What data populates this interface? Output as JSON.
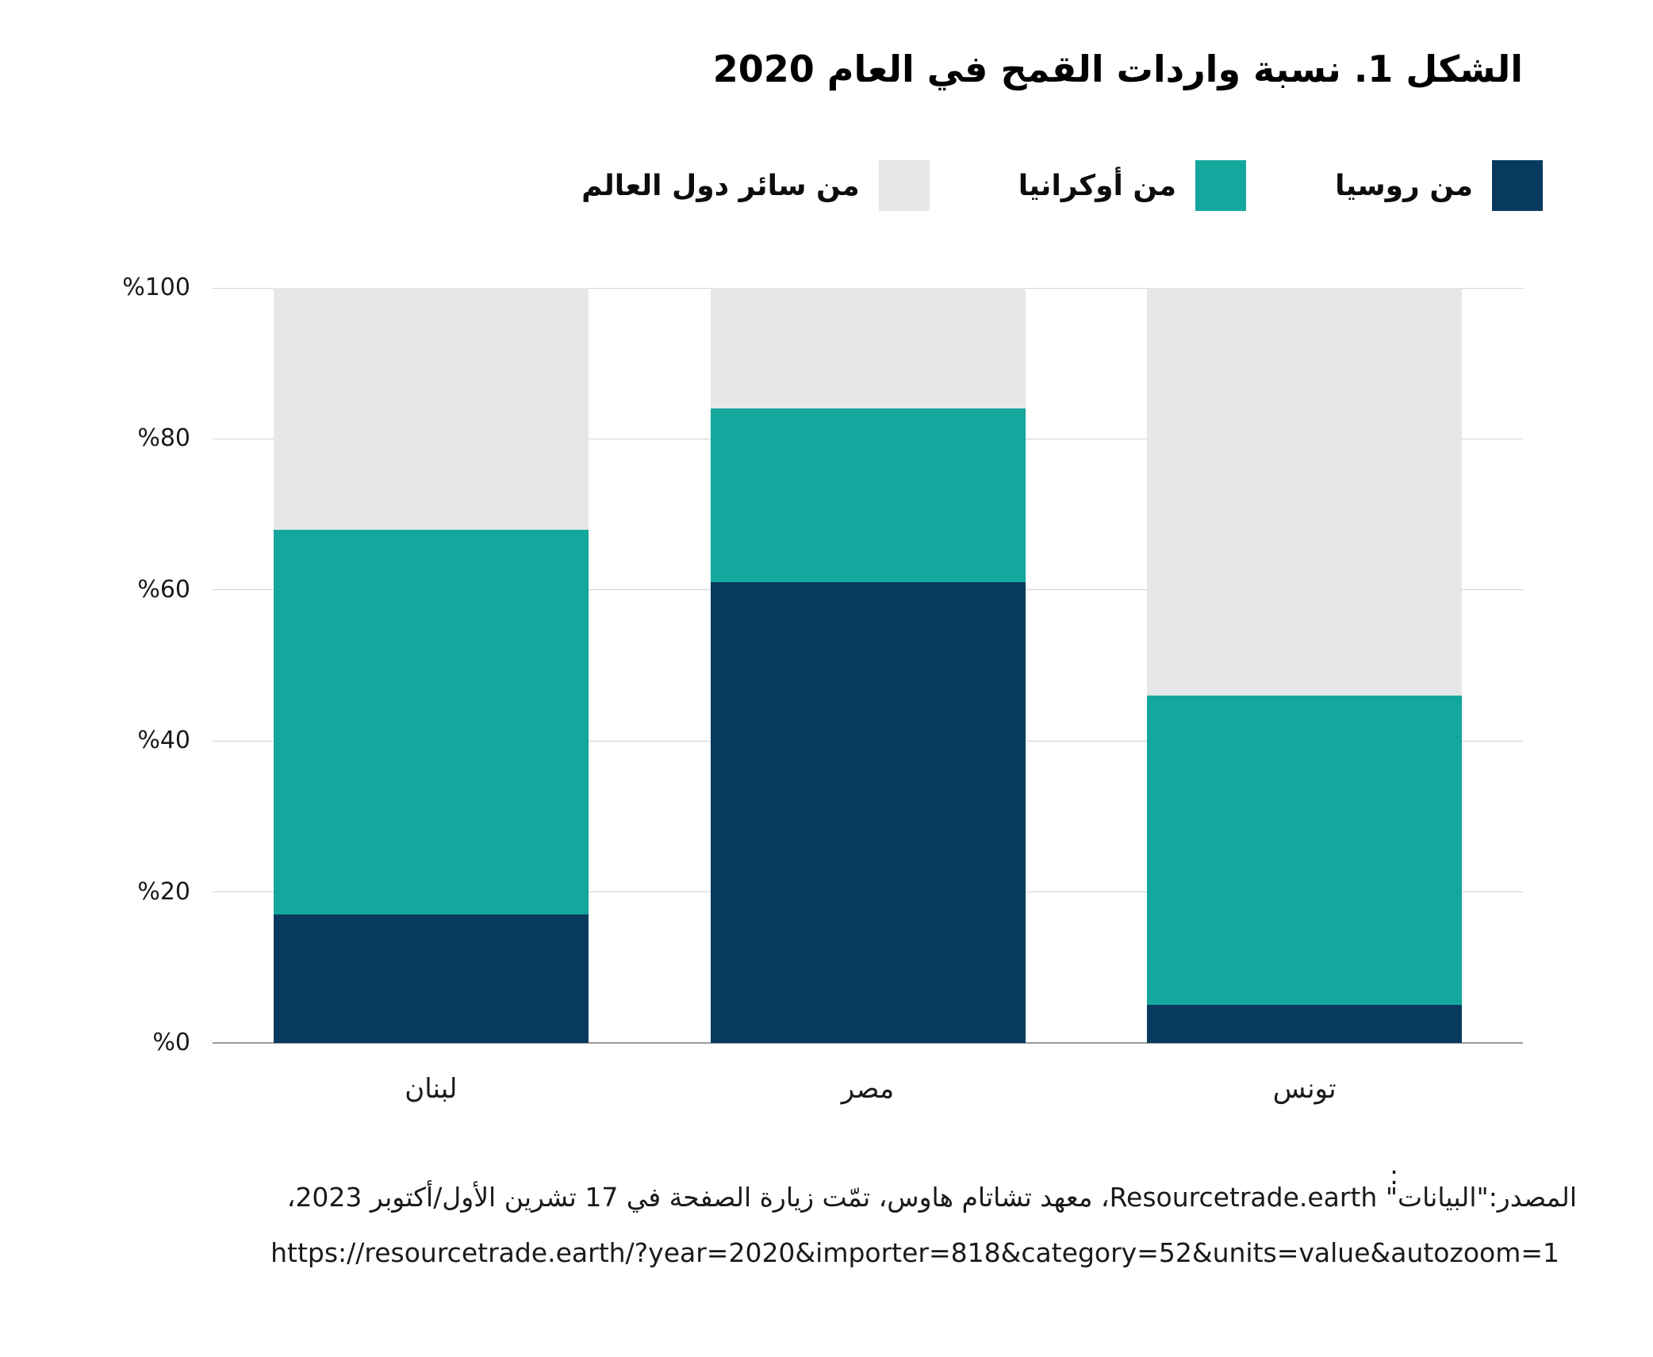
{
  "title": "الشكل 1. نسبة واردات القمح في العام 2020",
  "legend": [
    {
      "label": "من روسيا",
      "color": "#073a5e",
      "name": "russia"
    },
    {
      "label": "من أوكرانيا",
      "color": "#14a79d",
      "name": "ukraine"
    },
    {
      "label": "من سائر دول العالم",
      "color": "#e6e7e8",
      "name": "rest-of-world"
    }
  ],
  "chart_data": {
    "type": "bar",
    "stacked": true,
    "title": "الشكل 1. نسبة واردات القمح في العام 2020",
    "categories": [
      "لبنان",
      "مصر",
      "تونس"
    ],
    "series": [
      {
        "name": "من روسيا",
        "color": "#073a5e",
        "values": [
          17,
          61,
          5
        ]
      },
      {
        "name": "من أوكرانيا",
        "color": "#14a79d",
        "values": [
          51,
          23,
          41
        ]
      },
      {
        "name": "من سائر دول العالم",
        "color": "#e6e7e8",
        "values": [
          32,
          16,
          54
        ]
      }
    ],
    "ylim": [
      0,
      100
    ],
    "y_ticks": [
      {
        "value": 100,
        "label": "%100"
      },
      {
        "value": 80,
        "label": "%80"
      },
      {
        "value": 60,
        "label": "%60"
      },
      {
        "value": 40,
        "label": "%40"
      },
      {
        "value": 20,
        "label": "%20"
      },
      {
        "value": 0,
        "label": "%0"
      }
    ],
    "grid": true,
    "legend_position": "top-right",
    "grid_color": "#d2d2d2",
    "axis_color": "#9b9b9b"
  },
  "source": {
    "colon": ":",
    "line1": "المصدر:\"البيانات\" Resourcetrade.earth، معهد تشاتام هاوس، تمّت زيارة الصفحة في 17 تشرين الأول/أكتوبر 2023،",
    "url": "https://resourcetrade.earth/?year=2020&importer=818&category=52&units=value&autozoom=1"
  }
}
